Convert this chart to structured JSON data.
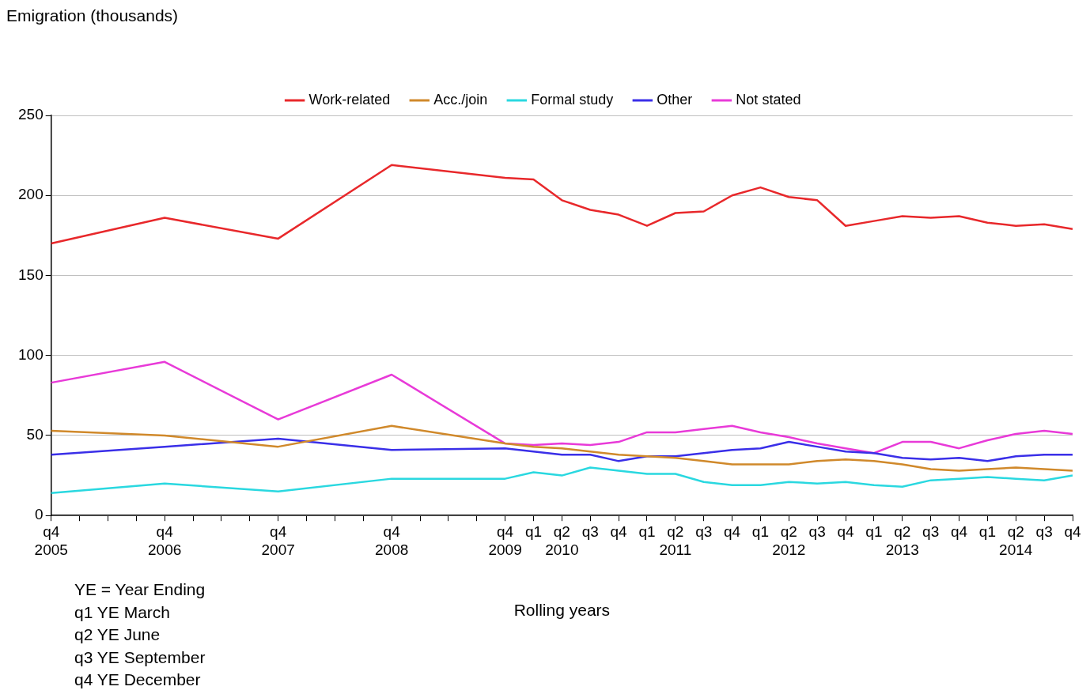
{
  "chart_data": {
    "type": "line",
    "title": "Emigration (thousands)",
    "xlabel": "Rolling years",
    "categories": [
      "q4\n2005",
      null,
      null,
      null,
      "q4\n2006",
      null,
      null,
      null,
      "q4\n2007",
      null,
      null,
      null,
      "q4\n2008",
      null,
      null,
      null,
      "q4\n2009",
      "q1",
      "q2\n2010",
      "q3",
      "q4",
      "q1",
      "q2\n2011",
      "q3",
      "q4",
      "q1",
      "q2\n2012",
      "q3",
      "q4",
      "q1",
      "q2\n2013",
      "q3",
      "q4",
      "q1",
      "q2\n2014",
      "q3",
      "q4"
    ],
    "series": [
      {
        "name": "Work-related",
        "color": "#e8282b",
        "values": [
          170,
          null,
          null,
          null,
          186,
          null,
          null,
          null,
          173,
          null,
          null,
          null,
          219,
          null,
          null,
          null,
          211,
          210,
          197,
          191,
          188,
          181,
          189,
          190,
          200,
          205,
          199,
          197,
          181,
          184,
          187,
          186,
          187,
          183,
          181,
          182,
          179
        ]
      },
      {
        "name": "Acc./join",
        "color": "#d0892b",
        "values": [
          53,
          null,
          null,
          null,
          50,
          null,
          null,
          null,
          43,
          null,
          null,
          null,
          56,
          null,
          null,
          null,
          45,
          43,
          42,
          40,
          38,
          37,
          36,
          34,
          32,
          32,
          32,
          34,
          35,
          34,
          32,
          29,
          28,
          29,
          30,
          29,
          28
        ]
      },
      {
        "name": "Formal study",
        "color": "#2ad8e0",
        "values": [
          14,
          null,
          null,
          null,
          20,
          null,
          null,
          null,
          15,
          null,
          null,
          null,
          23,
          null,
          null,
          null,
          23,
          27,
          25,
          30,
          28,
          26,
          26,
          21,
          19,
          19,
          21,
          20,
          21,
          19,
          18,
          22,
          23,
          24,
          23,
          22,
          25
        ]
      },
      {
        "name": "Other",
        "color": "#3a2fe8",
        "values": [
          38,
          null,
          null,
          null,
          43,
          null,
          null,
          null,
          48,
          null,
          null,
          null,
          41,
          null,
          null,
          null,
          42,
          40,
          38,
          38,
          34,
          37,
          37,
          39,
          41,
          42,
          46,
          43,
          40,
          39,
          36,
          35,
          36,
          34,
          37,
          38,
          38
        ]
      },
      {
        "name": "Not stated",
        "color": "#e83ad8",
        "values": [
          83,
          null,
          null,
          null,
          96,
          null,
          null,
          null,
          60,
          null,
          null,
          null,
          88,
          null,
          null,
          null,
          45,
          44,
          45,
          44,
          46,
          52,
          52,
          54,
          56,
          52,
          49,
          45,
          42,
          39,
          46,
          46,
          42,
          47,
          51,
          53,
          51
        ]
      }
    ],
    "ylim": [
      0,
      250
    ],
    "yticks": [
      0,
      50,
      100,
      150,
      200,
      250
    ],
    "grid": "y",
    "legend": "top",
    "marker": "none",
    "line_style": "solid",
    "annotations": [
      "YE = Year Ending",
      "q1 YE March",
      "q2 YE June",
      "q3 YE September",
      "q4 YE December"
    ]
  }
}
